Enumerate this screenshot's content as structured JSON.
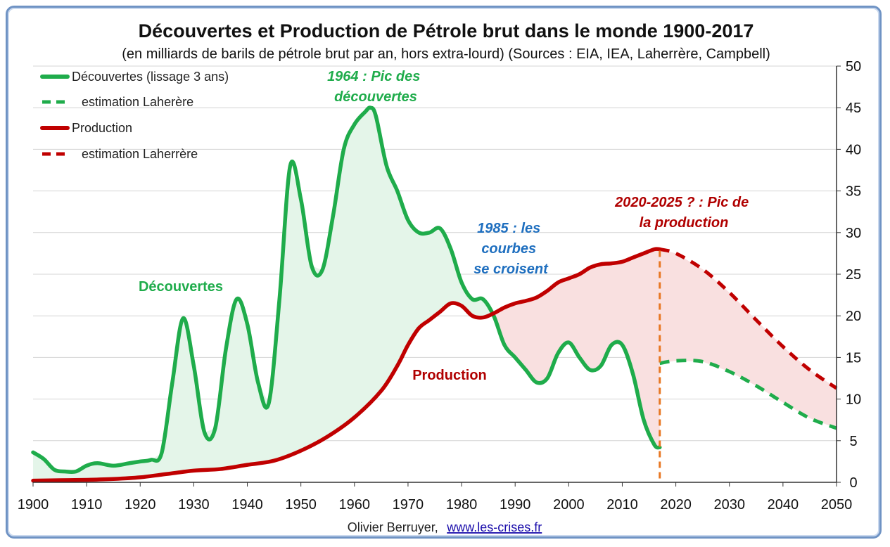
{
  "chart_data": {
    "type": "line",
    "title": "Découvertes et Production de Pétrole brut dans le monde 1900-2017",
    "subtitle": "(en milliards de barils de pétrole brut par an, hors extra-lourd) (Sources : EIA, IEA, Laherrère, Campbell)",
    "xlabel": "",
    "ylabel": "",
    "xlim": [
      1900,
      2050
    ],
    "ylim": [
      0,
      50
    ],
    "x_ticks": [
      1900,
      1910,
      1920,
      1930,
      1940,
      1950,
      1960,
      1970,
      1980,
      1990,
      2000,
      2010,
      2020,
      2030,
      2040,
      2050
    ],
    "y_ticks": [
      0,
      5,
      10,
      15,
      20,
      25,
      30,
      35,
      40,
      45,
      50
    ],
    "y_axis_side": "right",
    "grid": "horizontal",
    "legend_position": "top-left",
    "series": [
      {
        "name": "Découvertes (lissage 3 ans)",
        "color": "#1fac4b",
        "style": "solid",
        "points": [
          [
            1900,
            3.6
          ],
          [
            1902,
            2.8
          ],
          [
            1904,
            1.5
          ],
          [
            1906,
            1.3
          ],
          [
            1908,
            1.3
          ],
          [
            1910,
            2.0
          ],
          [
            1912,
            2.3
          ],
          [
            1915,
            2.0
          ],
          [
            1918,
            2.3
          ],
          [
            1920,
            2.5
          ],
          [
            1922,
            2.7
          ],
          [
            1924,
            3.5
          ],
          [
            1926,
            12
          ],
          [
            1928,
            19.7
          ],
          [
            1930,
            14
          ],
          [
            1932,
            6
          ],
          [
            1934,
            6.5
          ],
          [
            1936,
            16
          ],
          [
            1938,
            22
          ],
          [
            1940,
            19
          ],
          [
            1942,
            12
          ],
          [
            1944,
            9.5
          ],
          [
            1946,
            22
          ],
          [
            1948,
            38
          ],
          [
            1950,
            34
          ],
          [
            1952,
            26
          ],
          [
            1954,
            25.5
          ],
          [
            1956,
            32
          ],
          [
            1958,
            40
          ],
          [
            1960,
            43
          ],
          [
            1962,
            44.5
          ],
          [
            1963,
            45
          ],
          [
            1964,
            44
          ],
          [
            1966,
            38
          ],
          [
            1968,
            35
          ],
          [
            1970,
            31.5
          ],
          [
            1972,
            30
          ],
          [
            1974,
            30
          ],
          [
            1976,
            30.5
          ],
          [
            1978,
            28
          ],
          [
            1980,
            24
          ],
          [
            1982,
            22
          ],
          [
            1984,
            22
          ],
          [
            1986,
            20
          ],
          [
            1988,
            16.5
          ],
          [
            1990,
            15
          ],
          [
            1992,
            13.5
          ],
          [
            1994,
            12
          ],
          [
            1996,
            12.5
          ],
          [
            1998,
            15.5
          ],
          [
            2000,
            16.8
          ],
          [
            2002,
            15
          ],
          [
            2004,
            13.5
          ],
          [
            2006,
            14
          ],
          [
            2008,
            16.5
          ],
          [
            2010,
            16.5
          ],
          [
            2012,
            13
          ],
          [
            2014,
            7.5
          ],
          [
            2016,
            4.5
          ],
          [
            2017,
            4.2
          ]
        ]
      },
      {
        "name": "estimation Laherère",
        "color": "#1fac4b",
        "style": "dashed",
        "points": [
          [
            2017,
            14.3
          ],
          [
            2020,
            14.6
          ],
          [
            2025,
            14.5
          ],
          [
            2030,
            13.3
          ],
          [
            2035,
            11.6
          ],
          [
            2040,
            9.6
          ],
          [
            2045,
            7.7
          ],
          [
            2050,
            6.5
          ]
        ]
      },
      {
        "name": "Production",
        "color": "#c00000",
        "style": "solid",
        "points": [
          [
            1900,
            0.2
          ],
          [
            1905,
            0.25
          ],
          [
            1910,
            0.3
          ],
          [
            1915,
            0.4
          ],
          [
            1920,
            0.6
          ],
          [
            1925,
            1.0
          ],
          [
            1930,
            1.4
          ],
          [
            1935,
            1.6
          ],
          [
            1940,
            2.1
          ],
          [
            1945,
            2.6
          ],
          [
            1950,
            3.8
          ],
          [
            1955,
            5.5
          ],
          [
            1960,
            7.8
          ],
          [
            1965,
            11
          ],
          [
            1968,
            14
          ],
          [
            1970,
            16.5
          ],
          [
            1972,
            18.5
          ],
          [
            1974,
            19.5
          ],
          [
            1976,
            20.5
          ],
          [
            1978,
            21.5
          ],
          [
            1980,
            21.2
          ],
          [
            1982,
            20
          ],
          [
            1984,
            19.8
          ],
          [
            1986,
            20.3
          ],
          [
            1988,
            21
          ],
          [
            1990,
            21.5
          ],
          [
            1992,
            21.8
          ],
          [
            1994,
            22.2
          ],
          [
            1996,
            23
          ],
          [
            1998,
            24
          ],
          [
            2000,
            24.5
          ],
          [
            2002,
            25
          ],
          [
            2004,
            25.8
          ],
          [
            2006,
            26.2
          ],
          [
            2008,
            26.3
          ],
          [
            2010,
            26.5
          ],
          [
            2012,
            27
          ],
          [
            2014,
            27.5
          ],
          [
            2016,
            28
          ],
          [
            2017,
            28
          ]
        ]
      },
      {
        "name": "estimation Laherrère",
        "color": "#c00000",
        "style": "dashed",
        "points": [
          [
            2017,
            28
          ],
          [
            2020,
            27.5
          ],
          [
            2025,
            25.6
          ],
          [
            2030,
            22.8
          ],
          [
            2035,
            19.5
          ],
          [
            2040,
            16.3
          ],
          [
            2045,
            13.5
          ],
          [
            2050,
            11.3
          ]
        ]
      }
    ],
    "vertical_marker": {
      "x": 2017,
      "color": "#e87722",
      "style": "dashed"
    },
    "annotations": [
      {
        "text_lines": [
          "1964 : Pic des",
          "découvertes"
        ],
        "color": "#1fac4b",
        "style": "bold-italic"
      },
      {
        "text_lines": [
          "1985 : les",
          "courbes",
          "se croisent"
        ],
        "color": "#1f6fbf",
        "style": "bold-italic"
      },
      {
        "text_lines": [
          "2020-2025 ? : Pic de",
          "la production"
        ],
        "color": "#b00000",
        "style": "bold-italic"
      },
      {
        "text_lines": [
          "Découvertes"
        ],
        "color": "#1fac4b",
        "style": "bold"
      },
      {
        "text_lines": [
          "Production"
        ],
        "color": "#b00000",
        "style": "bold"
      }
    ],
    "fills": {
      "discoveries_over_production": "#e4f5e9",
      "production_over_discoveries": "#f9e0e0"
    }
  },
  "credit": {
    "author": "Olivier Berruyer,",
    "link": "www.les-crises.fr"
  }
}
